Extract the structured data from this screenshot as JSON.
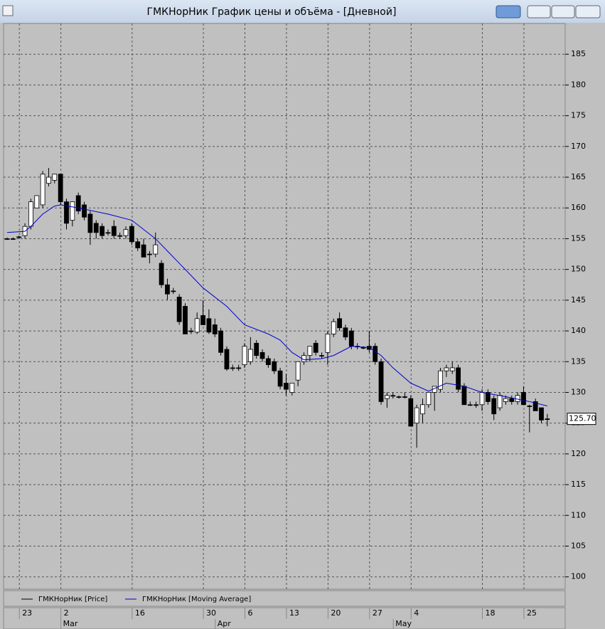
{
  "window": {
    "title": "ГМКНорНик График цены и объёма - [Дневной]"
  },
  "chart_data": {
    "type": "candlestick",
    "categories": [
      null,
      null,
      "23",
      null,
      null,
      null,
      null,
      null,
      null,
      "2",
      null,
      null,
      null,
      null,
      null,
      null,
      null,
      null,
      null,
      null,
      null,
      "16",
      null,
      null,
      null,
      null,
      null,
      null,
      null,
      null,
      null,
      null,
      null,
      "30",
      null,
      null,
      null,
      null,
      null,
      null,
      "6",
      null,
      null,
      null,
      null,
      null,
      null,
      "13",
      null,
      null,
      null,
      null,
      null,
      null,
      "20",
      null,
      null,
      null,
      null,
      null,
      null,
      "27",
      null,
      null,
      null,
      null,
      null,
      null,
      "4",
      null,
      null,
      null,
      null,
      null,
      null,
      null,
      null,
      null,
      null,
      null,
      "18",
      null,
      null,
      null,
      null,
      null,
      null,
      "25",
      null,
      null,
      null,
      null
    ],
    "month_labels": [
      null,
      null,
      null,
      null,
      null,
      null,
      null,
      null,
      null,
      "Mar",
      null,
      null,
      null,
      null,
      null,
      null,
      null,
      null,
      null,
      null,
      null,
      null,
      null,
      null,
      null,
      null,
      null,
      null,
      null,
      null,
      null,
      null,
      null,
      null,
      null,
      "Apr",
      null,
      null,
      null,
      null,
      null,
      null,
      null,
      null,
      null,
      null,
      null,
      null,
      null,
      null,
      null,
      null,
      null,
      null,
      null,
      null,
      null,
      null,
      null,
      null,
      null,
      null,
      null,
      null,
      null,
      "May",
      null,
      null,
      null,
      null,
      null,
      null,
      null,
      null,
      null,
      null,
      null,
      null,
      null,
      null,
      null,
      null,
      null,
      null,
      null,
      null,
      null,
      null,
      null,
      null,
      null,
      null
    ],
    "series": [
      {
        "name": "ГМКНорНик [Price]",
        "color": "#000000",
        "open": [
          155,
          155,
          155.3,
          155.5,
          157,
          160,
          160.5,
          164,
          164.5,
          165.5,
          161,
          158,
          162,
          160.5,
          159,
          157.5,
          157,
          156,
          157,
          155.5,
          155.5,
          157,
          154.5,
          154,
          152.5,
          152.5,
          151,
          147.5,
          146.5,
          145.5,
          144,
          140,
          139.8,
          142.5,
          142,
          141,
          140,
          137,
          134,
          134,
          134.5,
          135,
          138,
          136.5,
          135.5,
          135,
          133.5,
          131.5,
          130,
          132,
          135,
          136,
          138,
          136,
          136.5,
          139.5,
          142,
          140.5,
          140,
          137.5,
          137.3,
          137.5,
          137.5,
          135,
          129,
          129.5,
          129.3,
          129.3,
          129,
          125,
          126.5,
          128,
          130,
          130.5,
          133.5,
          133.5,
          134,
          131,
          128,
          128,
          128,
          130,
          129,
          127.5,
          128.5,
          129,
          128.5,
          130,
          127.8,
          128.5,
          127.5,
          125.7
        ],
        "high": [
          155.2,
          155.2,
          155.5,
          157.5,
          161.5,
          162,
          166,
          166.5,
          165.5,
          165.5,
          161.5,
          161,
          162.5,
          161,
          159.5,
          158,
          157.5,
          156.5,
          158,
          156,
          157,
          157.5,
          155,
          155,
          153,
          156,
          151.5,
          148.5,
          147,
          146,
          144.5,
          140.5,
          143,
          145,
          143.5,
          142,
          140.5,
          137.5,
          134.5,
          134.5,
          138,
          139,
          138.5,
          137,
          136,
          135.5,
          134,
          133,
          131.5,
          135,
          136.5,
          137.5,
          138.5,
          136.5,
          140,
          142,
          143,
          141,
          140.5,
          138,
          137.5,
          140,
          138,
          135.5,
          130,
          130,
          129.5,
          130,
          129.5,
          128,
          129,
          130,
          131,
          134,
          134.5,
          135,
          134.5,
          131.5,
          128.5,
          128.5,
          130.5,
          130.5,
          129.5,
          130,
          129.5,
          129.5,
          130,
          131,
          128,
          129,
          127.5,
          126.5
        ],
        "low": [
          154.8,
          154.8,
          155,
          155,
          156.5,
          160,
          160,
          163.5,
          164,
          160.5,
          156.5,
          157,
          159,
          158,
          154,
          155,
          155,
          155.5,
          155,
          155,
          155,
          154,
          153,
          152,
          151,
          152,
          147,
          145,
          146,
          141,
          139.5,
          139.5,
          139.5,
          141,
          139.5,
          139,
          136,
          133.5,
          133.5,
          133.5,
          134,
          134.5,
          135.5,
          135,
          134,
          133,
          130.5,
          129.5,
          129.5,
          131,
          134.5,
          135,
          136,
          135.5,
          134.5,
          139,
          140,
          138.5,
          137,
          137,
          137,
          136.5,
          134.5,
          128,
          127.5,
          129,
          129,
          129,
          124.5,
          121,
          125,
          127.5,
          127,
          130,
          132.5,
          133,
          130,
          128,
          127.8,
          127.5,
          127,
          128,
          125.5,
          127,
          128,
          128,
          128,
          128,
          123.5,
          127,
          125,
          124.5
        ],
        "close": [
          155,
          155,
          155.3,
          157,
          161,
          162,
          165.5,
          165,
          165.5,
          161,
          157.5,
          161,
          159.5,
          158.5,
          156,
          156,
          155.5,
          156,
          155.5,
          155.5,
          156.5,
          154.5,
          153.5,
          152,
          152.5,
          154,
          147.5,
          146,
          146.5,
          141.5,
          139.5,
          140,
          142,
          141,
          139.8,
          139.5,
          136.5,
          133.8,
          134,
          134,
          137.5,
          137,
          136,
          135.5,
          134.5,
          133.5,
          131,
          130.5,
          131.5,
          135,
          136,
          137.5,
          136.5,
          136,
          139.5,
          141.5,
          140.5,
          139,
          137.5,
          137.5,
          137.3,
          137,
          135,
          128.5,
          129.5,
          129.5,
          129.3,
          129.3,
          124.5,
          127.5,
          128,
          130,
          131,
          133.5,
          134,
          134,
          130.5,
          128,
          128,
          128,
          130,
          128.5,
          126.5,
          129.5,
          129,
          128.5,
          129.5,
          128,
          127.8,
          127,
          125.5,
          125.7
        ]
      },
      {
        "name": "ГМКНорНик [Moving Average]",
        "color": "#0000cc",
        "type": "line",
        "x": [
          0,
          3,
          4,
          6,
          8,
          9,
          12,
          17,
          21,
          25,
          27,
          30,
          33,
          37,
          40,
          44,
          46,
          48,
          50,
          53,
          55,
          58,
          61,
          63,
          65,
          68,
          71,
          74,
          77,
          80,
          84,
          88,
          91
        ],
        "values": [
          156,
          156.2,
          157,
          159,
          160.3,
          160.5,
          160,
          159,
          158,
          155,
          153,
          150,
          147,
          144,
          141,
          139.5,
          138.5,
          136.5,
          135.3,
          135.5,
          136,
          137.5,
          137.3,
          136,
          134,
          131.5,
          130.2,
          131.5,
          131,
          130,
          129.3,
          128.5,
          127.8
        ]
      }
    ],
    "up_color": "#ffffff",
    "down_color": "#000000",
    "ylim": [
      98,
      190
    ],
    "yticks": [
      100,
      105,
      110,
      115,
      120,
      125,
      130,
      135,
      140,
      145,
      150,
      155,
      160,
      165,
      170,
      175,
      180,
      185
    ],
    "grid": true,
    "last_close_label": "125.70"
  }
}
